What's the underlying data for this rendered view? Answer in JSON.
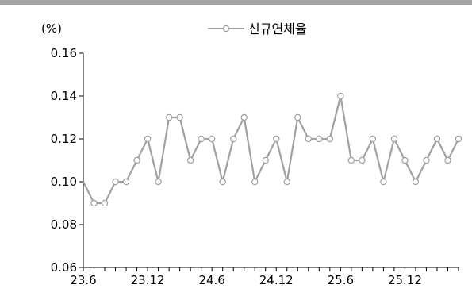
{
  "chart_data": {
    "type": "line",
    "unit": "(%)",
    "x": [
      "23.6",
      "23.7",
      "23.8",
      "23.9",
      "23.10",
      "23.11",
      "23.12",
      "24.1",
      "24.2",
      "24.3",
      "24.4",
      "24.5",
      "24.6",
      "24.7",
      "24.8",
      "24.9",
      "24.10",
      "24.11",
      "24.12",
      "25.1",
      "25.2",
      "25.3",
      "25.4",
      "25.5",
      "25.6",
      "25.7",
      "25.8",
      "25.9",
      "25.10",
      "25.11",
      "25.12",
      "26.1",
      "26.2",
      "26.3",
      "26.4",
      "26.5"
    ],
    "x_tick_labels": [
      "23.6",
      "23.12",
      "24.6",
      "24.12",
      "25.6",
      "25.12"
    ],
    "series": [
      {
        "name": "신규연체율",
        "color": "#a0a0a0",
        "values": [
          0.1,
          0.09,
          0.09,
          0.1,
          0.1,
          0.11,
          0.12,
          0.1,
          0.13,
          0.13,
          0.11,
          0.12,
          0.12,
          0.1,
          0.12,
          0.13,
          0.1,
          0.11,
          0.12,
          0.1,
          0.13,
          0.12,
          0.12,
          0.12,
          0.14,
          0.11,
          0.11,
          0.12,
          0.1,
          0.12,
          0.11,
          0.1,
          0.11,
          0.12,
          0.11,
          0.12
        ]
      }
    ],
    "ylim": [
      0.06,
      0.16
    ],
    "y_ticks": [
      "0.16",
      "0.14",
      "0.12",
      "0.10",
      "0.08",
      "0.06"
    ],
    "legend_position": "top-center",
    "grid": false
  }
}
